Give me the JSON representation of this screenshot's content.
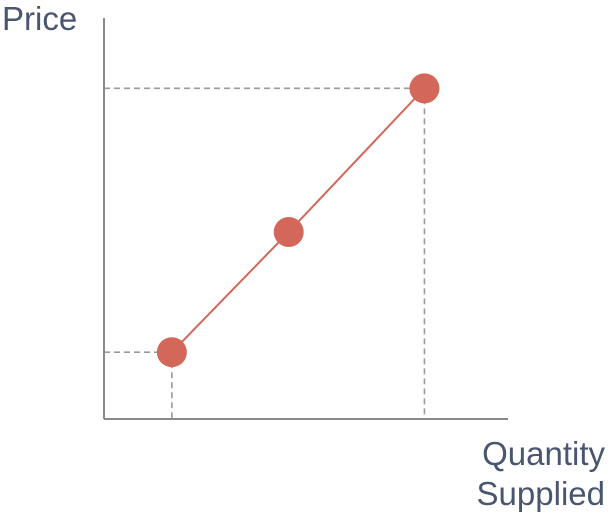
{
  "chart_data": {
    "type": "line",
    "title": "",
    "ylabel": "Price",
    "xlabel_lines": [
      "Quantity",
      "Supplied"
    ],
    "x_ticks_shown": false,
    "y_ticks_shown": false,
    "xlim": [
      0,
      100
    ],
    "ylim": [
      0,
      100
    ],
    "grid": false,
    "series": [
      {
        "points": [
          {
            "x": 18,
            "y": 20
          },
          {
            "x": 49,
            "y": 56
          },
          {
            "x": 85,
            "y": 99
          }
        ]
      }
    ],
    "reference_lines": [
      {
        "axis": "x",
        "value": 18
      },
      {
        "axis": "y",
        "value": 20
      },
      {
        "axis": "x",
        "value": 85
      },
      {
        "axis": "y",
        "value": 99
      }
    ],
    "colors": {
      "series": "#d2675a",
      "axis": "#8a8a8a",
      "reference": "#9a9a9a",
      "label": "#4a5670"
    }
  }
}
